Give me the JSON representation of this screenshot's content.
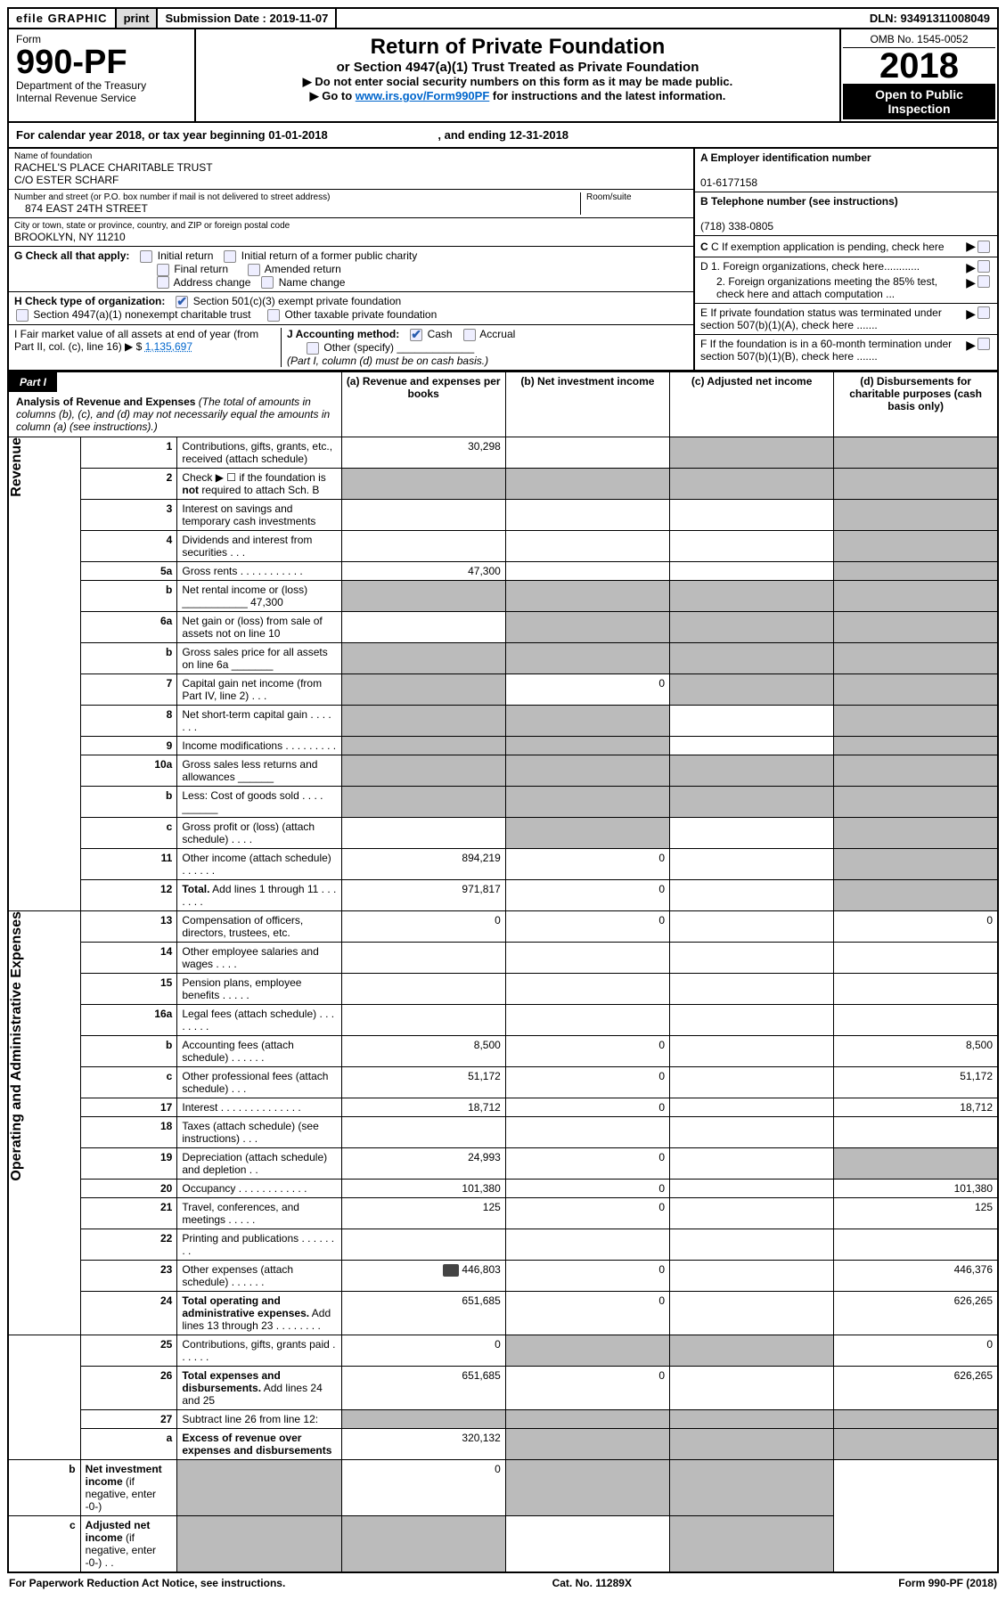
{
  "topbar": {
    "efile": "efile GRAPHIC",
    "print": "print",
    "submission_label": "Submission Date :",
    "submission_date": "2019-11-07",
    "dln_label": "DLN:",
    "dln": "93491311008049"
  },
  "header": {
    "form_label": "Form",
    "form_no": "990-PF",
    "dept": "Department of the Treasury",
    "irs": "Internal Revenue Service",
    "title": "Return of Private Foundation",
    "subtitle": "or Section 4947(a)(1) Trust Treated as Private Foundation",
    "warn1": "▶ Do not enter social security numbers on this form as it may be made public.",
    "warn2_pre": "▶ Go to ",
    "warn2_link": "www.irs.gov/Form990PF",
    "warn2_post": " for instructions and the latest information.",
    "omb": "OMB No. 1545-0052",
    "year": "2018",
    "open": "Open to Public Inspection"
  },
  "calyear": {
    "prefix": "For calendar year 2018, or tax year beginning ",
    "begin": "01-01-2018",
    "mid": " , and ending ",
    "end": "12-31-2018"
  },
  "entity": {
    "name_label": "Name of foundation",
    "name1": "RACHEL'S PLACE CHARITABLE TRUST",
    "name2": "C/O ESTER SCHARF",
    "addr_label": "Number and street (or P.O. box number if mail is not delivered to street address)",
    "addr": "874 EAST 24TH STREET",
    "room_label": "Room/suite",
    "city_label": "City or town, state or province, country, and ZIP or foreign postal code",
    "city": "BROOKLYN, NY  11210",
    "ein_label": "A Employer identification number",
    "ein": "01-6177158",
    "phone_label": "B Telephone number (see instructions)",
    "phone": "(718) 338-0805",
    "c_label": "C If exemption application is pending, check here",
    "d1": "D 1. Foreign organizations, check here............",
    "d2": "2. Foreign organizations meeting the 85% test, check here and attach computation ...",
    "e_label": "E  If private foundation status was terminated under section 507(b)(1)(A), check here .......",
    "f_label": "F  If the foundation is in a 60-month termination under section 507(b)(1)(B), check here ......."
  },
  "g": {
    "label": "G Check all that apply:",
    "opts": [
      "Initial return",
      "Initial return of a former public charity",
      "Final return",
      "Amended return",
      "Address change",
      "Name change"
    ]
  },
  "h": {
    "label": "H Check type of organization:",
    "opt1": "Section 501(c)(3) exempt private foundation",
    "opt2": "Section 4947(a)(1) nonexempt charitable trust",
    "opt3": "Other taxable private foundation"
  },
  "i": {
    "label": "I Fair market value of all assets at end of year (from Part II, col. (c), line 16) ▶ $ ",
    "value": "1,135,697"
  },
  "j": {
    "label": "J Accounting method:",
    "cash": "Cash",
    "accrual": "Accrual",
    "other": "Other (specify)",
    "note": "(Part I, column (d) must be on cash basis.)"
  },
  "part1": {
    "label": "Part I",
    "title": "Analysis of Revenue and Expenses",
    "title_note": "(The total of amounts in columns (b), (c), and (d) may not necessarily equal the amounts in column (a) (see instructions).)",
    "cols": {
      "a": "(a) Revenue and expenses per books",
      "b": "(b) Net investment income",
      "c": "(c) Adjusted net income",
      "d": "(d) Disbursements for charitable purposes (cash basis only)"
    }
  },
  "sections": {
    "revenue": "Revenue",
    "expenses": "Operating and Administrative Expenses"
  },
  "lines": [
    {
      "n": "1",
      "desc": "Contributions, gifts, grants, etc., received (attach schedule)",
      "a": "30,298",
      "b": "",
      "c": "s",
      "d": "s"
    },
    {
      "n": "2",
      "desc": "Check ▶ ☐ if the foundation is <b>not</b> required to attach Sch. B",
      "a": "s",
      "b": "s",
      "c": "s",
      "d": "s"
    },
    {
      "n": "3",
      "desc": "Interest on savings and temporary cash investments",
      "a": "",
      "b": "",
      "c": "",
      "d": "s"
    },
    {
      "n": "4",
      "desc": "Dividends and interest from securities   .  .  .",
      "a": "",
      "b": "",
      "c": "",
      "d": "s"
    },
    {
      "n": "5a",
      "desc": "Gross rents   .  .  .  .  .  .  .  .  .  .  .",
      "a": "47,300",
      "b": "",
      "c": "",
      "d": "s"
    },
    {
      "n": "b",
      "desc": "Net rental income or (loss) ___________ 47,300",
      "a": "s",
      "b": "s",
      "c": "s",
      "d": "s"
    },
    {
      "n": "6a",
      "desc": "Net gain or (loss) from sale of assets not on line 10",
      "a": "",
      "b": "s",
      "c": "s",
      "d": "s"
    },
    {
      "n": "b",
      "desc": "Gross sales price for all assets on line 6a _______",
      "a": "s",
      "b": "s",
      "c": "s",
      "d": "s"
    },
    {
      "n": "7",
      "desc": "Capital gain net income (from Part IV, line 2)   .  .  .",
      "a": "s",
      "b": "0",
      "c": "s",
      "d": "s"
    },
    {
      "n": "8",
      "desc": "Net short-term capital gain   .  .  .  .  .  .  .",
      "a": "s",
      "b": "s",
      "c": "",
      "d": "s"
    },
    {
      "n": "9",
      "desc": "Income modifications   .  .  .  .  .  .  .  .  .",
      "a": "s",
      "b": "s",
      "c": "",
      "d": "s"
    },
    {
      "n": "10a",
      "desc": "Gross sales less returns and allowances  ______",
      "a": "s",
      "b": "s",
      "c": "s",
      "d": "s"
    },
    {
      "n": "b",
      "desc": "Less: Cost of goods sold       .  .  .  .  ______",
      "a": "s",
      "b": "s",
      "c": "s",
      "d": "s"
    },
    {
      "n": "c",
      "desc": "Gross profit or (loss) (attach schedule)   .  .  .  .",
      "a": "",
      "b": "s",
      "c": "",
      "d": "s"
    },
    {
      "n": "11",
      "desc": "Other income (attach schedule)   .  .  .  .  .  .",
      "a": "894,219",
      "b": "0",
      "c": "",
      "d": "s"
    },
    {
      "n": "12",
      "desc": "<b>Total.</b> Add lines 1 through 11   .  .  .  .  .  .  .",
      "a": "971,817",
      "b": "0",
      "c": "",
      "d": "s"
    },
    {
      "n": "13",
      "desc": "Compensation of officers, directors, trustees, etc.",
      "a": "0",
      "b": "0",
      "c": "",
      "d": "0"
    },
    {
      "n": "14",
      "desc": "Other employee salaries and wages   .  .  .  .",
      "a": "",
      "b": "",
      "c": "",
      "d": ""
    },
    {
      "n": "15",
      "desc": "Pension plans, employee benefits   .  .  .  .  .",
      "a": "",
      "b": "",
      "c": "",
      "d": ""
    },
    {
      "n": "16a",
      "desc": "Legal fees (attach schedule)   .  .  .  .  .  .  .  .",
      "a": "",
      "b": "",
      "c": "",
      "d": ""
    },
    {
      "n": "b",
      "desc": "Accounting fees (attach schedule)   .  .  .  .  .  .",
      "a": "8,500",
      "b": "0",
      "c": "",
      "d": "8,500"
    },
    {
      "n": "c",
      "desc": "Other professional fees (attach schedule)   .  .  .",
      "a": "51,172",
      "b": "0",
      "c": "",
      "d": "51,172"
    },
    {
      "n": "17",
      "desc": "Interest   .  .  .  .  .  .  .  .  .  .  .  .  .  .",
      "a": "18,712",
      "b": "0",
      "c": "",
      "d": "18,712"
    },
    {
      "n": "18",
      "desc": "Taxes (attach schedule) (see instructions)   .  .  .",
      "a": "",
      "b": "",
      "c": "",
      "d": ""
    },
    {
      "n": "19",
      "desc": "Depreciation (attach schedule) and depletion   .  .",
      "a": "24,993",
      "b": "0",
      "c": "",
      "d": "s"
    },
    {
      "n": "20",
      "desc": "Occupancy   .  .  .  .  .  .  .  .  .  .  .  .",
      "a": "101,380",
      "b": "0",
      "c": "",
      "d": "101,380"
    },
    {
      "n": "21",
      "desc": "Travel, conferences, and meetings   .  .  .  .  .",
      "a": "125",
      "b": "0",
      "c": "",
      "d": "125"
    },
    {
      "n": "22",
      "desc": "Printing and publications   .  .  .  .  .  .  .  .",
      "a": "",
      "b": "",
      "c": "",
      "d": ""
    },
    {
      "n": "23",
      "desc": "Other expenses (attach schedule)   .  .  .  .  .  .",
      "a": "446,803",
      "b": "0",
      "c": "",
      "d": "446,376",
      "icon": true
    },
    {
      "n": "24",
      "desc": "<b>Total operating and administrative expenses.</b> Add lines 13 through 23   .  .  .  .  .  .  .  .",
      "a": "651,685",
      "b": "0",
      "c": "",
      "d": "626,265"
    },
    {
      "n": "25",
      "desc": "Contributions, gifts, grants paid   .  .  .  .  .  .",
      "a": "0",
      "b": "s",
      "c": "s",
      "d": "0"
    },
    {
      "n": "26",
      "desc": "<b>Total expenses and disbursements.</b> Add lines 24 and 25",
      "a": "651,685",
      "b": "0",
      "c": "",
      "d": "626,265"
    },
    {
      "n": "27",
      "desc": "Subtract line 26 from line 12:",
      "a": "s",
      "b": "s",
      "c": "s",
      "d": "s"
    },
    {
      "n": "a",
      "desc": "<b>Excess of revenue over expenses and disbursements</b>",
      "a": "320,132",
      "b": "s",
      "c": "s",
      "d": "s"
    },
    {
      "n": "b",
      "desc": "<b>Net investment income</b> (if negative, enter -0-)",
      "a": "s",
      "b": "0",
      "c": "s",
      "d": "s"
    },
    {
      "n": "c",
      "desc": "<b>Adjusted net income</b> (if negative, enter -0-)   .  .",
      "a": "s",
      "b": "s",
      "c": "",
      "d": "s"
    }
  ],
  "footer": {
    "left": "For Paperwork Reduction Act Notice, see instructions.",
    "mid": "Cat. No. 11289X",
    "right": "Form 990-PF (2018)"
  }
}
